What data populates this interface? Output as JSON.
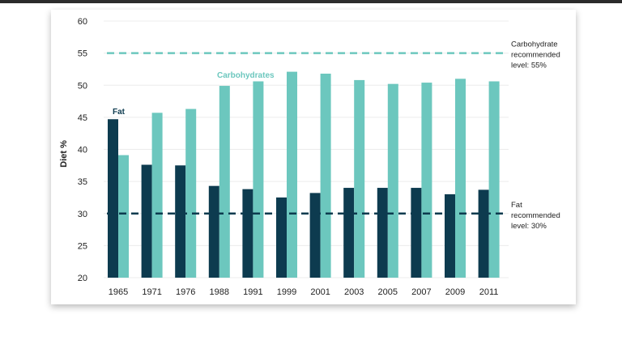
{
  "chart_data": {
    "type": "bar",
    "categories": [
      "1965",
      "1971",
      "1976",
      "1988",
      "1991",
      "1999",
      "2001",
      "2003",
      "2005",
      "2007",
      "2009",
      "2011"
    ],
    "series": [
      {
        "name": "Fat",
        "values": [
          44.7,
          37.6,
          37.5,
          34.3,
          33.8,
          32.5,
          33.2,
          34.0,
          34.0,
          34.0,
          33.0,
          33.7
        ],
        "color": "#0d3b4f"
      },
      {
        "name": "Carbohydrates",
        "values": [
          39.1,
          45.7,
          46.3,
          49.9,
          50.6,
          52.1,
          51.8,
          50.8,
          50.2,
          50.4,
          51.0,
          50.6
        ],
        "color": "#6cc7be"
      }
    ],
    "ylabel": "Diet %",
    "xlabel": "",
    "ylim": [
      20,
      60
    ],
    "yticks": [
      20,
      25,
      30,
      35,
      40,
      45,
      50,
      55,
      60
    ],
    "grid": true,
    "reference_lines": [
      {
        "value": 55,
        "label_lines": [
          "Carbohydrate",
          "recommended",
          "level: 55%"
        ],
        "color": "#6cc7be"
      },
      {
        "value": 30,
        "label_lines": [
          "Fat",
          "recommended",
          "level: 30%"
        ],
        "color": "#0d3b4f"
      }
    ]
  }
}
